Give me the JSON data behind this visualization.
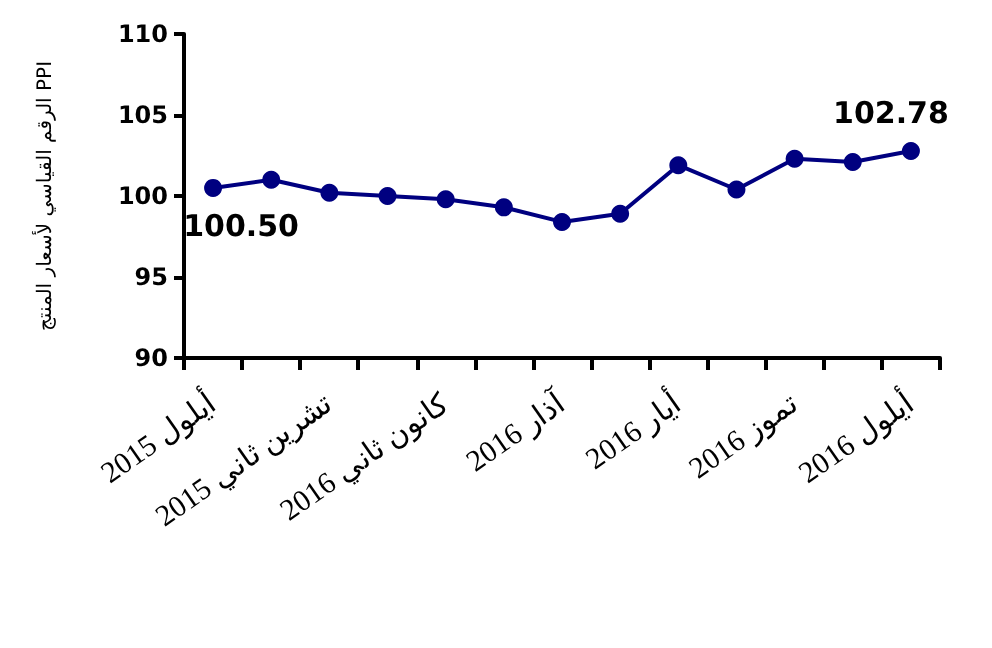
{
  "chart_data": {
    "type": "line",
    "ylabel": "الرقم القياسي لأسعار المنتج PPI",
    "categories": [
      "أيلول 2015",
      null,
      "تشرين ثاني 2015",
      null,
      "كانون ثاني 2016",
      null,
      "آذار 2016",
      null,
      "أيار 2016",
      null,
      "تموز 2016",
      null,
      "أيلول 2016"
    ],
    "series": [
      {
        "color": "#000080",
        "values": [
          100.5,
          101,
          100.2,
          100,
          99.8,
          99.3,
          98.4,
          98.9,
          101.9,
          100.4,
          102.3,
          102.1,
          102.78
        ],
        "value_labels": [
          "100.50",
          null,
          null,
          null,
          null,
          null,
          null,
          null,
          null,
          null,
          null,
          null,
          "102.78"
        ]
      }
    ],
    "ylim": [
      90,
      110
    ],
    "yticks": [
      90,
      95,
      100,
      105,
      110
    ],
    "grid": false,
    "marker": "circle",
    "line_style": "solid"
  }
}
